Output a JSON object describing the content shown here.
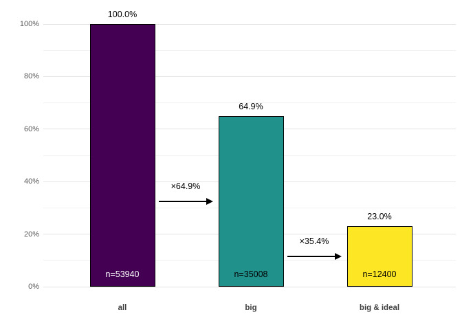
{
  "chart_data": {
    "type": "bar",
    "title": "",
    "xlabel": "",
    "ylabel": "",
    "categories": [
      "all",
      "big",
      "big & ideal"
    ],
    "values": [
      100.0,
      64.9,
      23.0
    ],
    "value_labels": [
      "100.0%",
      "64.9%",
      "23.0%"
    ],
    "counts": [
      53940,
      35008,
      12400
    ],
    "count_labels": [
      "n=53940",
      "n=35008",
      "n=12400"
    ],
    "bar_colors": [
      "#440154",
      "#21918c",
      "#fde725"
    ],
    "count_label_colors": [
      "#ffffff",
      "#000000",
      "#000000"
    ],
    "transitions": [
      {
        "from": "all",
        "to": "big",
        "label": "×64.9%"
      },
      {
        "from": "big",
        "to": "big & ideal",
        "label": "×35.4%"
      }
    ],
    "yaxis": {
      "range": [
        0,
        100
      ],
      "tick_values": [
        0,
        20,
        40,
        60,
        80,
        100
      ],
      "tick_labels": [
        "0%",
        "20%",
        "40%",
        "60%",
        "80%",
        "100%"
      ],
      "minor_tick_values": [
        10,
        30,
        50,
        70,
        90
      ]
    },
    "grid": true,
    "legend": "none",
    "colors": {
      "background": "#ffffff",
      "major_gridline": "#e3e3e3",
      "minor_gridline": "#f1f1f1",
      "axis_text": "#5a5a5a",
      "category_text": "#404040",
      "bar_border": "#000000",
      "arrow": "#000000"
    }
  }
}
